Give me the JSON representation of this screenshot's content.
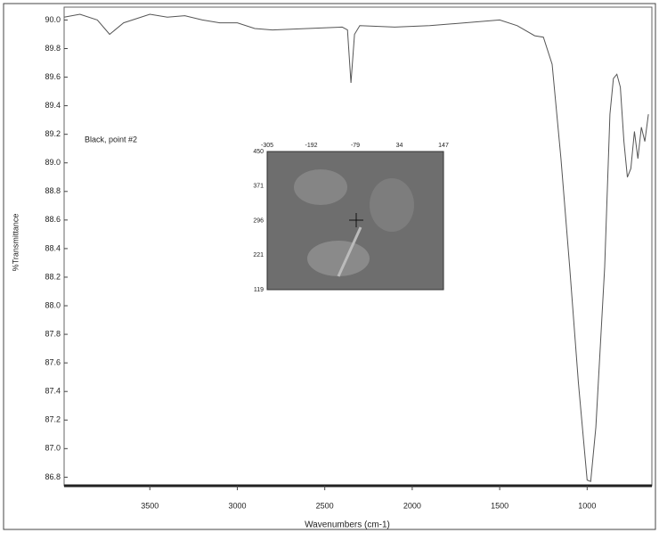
{
  "chart_data": {
    "type": "line",
    "annotation": "Black, point #2",
    "xlabel": "Wavenumbers (cm-1)",
    "ylabel": "%Transmittance",
    "x": [
      3990,
      3900,
      3800,
      3730,
      3650,
      3500,
      3400,
      3300,
      3200,
      3100,
      3000,
      2900,
      2800,
      2600,
      2400,
      2370,
      2350,
      2330,
      2300,
      2100,
      1900,
      1700,
      1500,
      1400,
      1300,
      1250,
      1200,
      1150,
      1100,
      1050,
      1000,
      980,
      950,
      900,
      870,
      850,
      830,
      810,
      790,
      770,
      750,
      730,
      710,
      690,
      670,
      650
    ],
    "series": [
      {
        "color": "#555555",
        "values": [
          90.02,
          90.04,
          90.0,
          89.9,
          89.98,
          90.04,
          90.02,
          90.03,
          90.0,
          89.98,
          89.98,
          89.94,
          89.93,
          89.94,
          89.95,
          89.93,
          89.56,
          89.9,
          89.96,
          89.95,
          89.96,
          89.98,
          90.0,
          89.96,
          89.89,
          89.88,
          89.69,
          89.03,
          88.27,
          87.46,
          86.78,
          86.77,
          87.15,
          88.27,
          89.34,
          89.59,
          89.62,
          89.53,
          89.15,
          88.9,
          88.96,
          89.22,
          89.03,
          89.25,
          89.15,
          89.34
        ]
      }
    ],
    "xlim": [
      3990,
      630
    ],
    "xticks": [
      3500,
      3000,
      2500,
      2000,
      1500,
      1000
    ],
    "ylim": [
      86.74,
      90.09
    ],
    "yticks": [
      {
        "value": 86.8,
        "label": "86.8"
      },
      {
        "value": 87.0,
        "label": "87.0"
      },
      {
        "value": 87.2,
        "label": "87.2"
      },
      {
        "value": 87.4,
        "label": "87.4"
      },
      {
        "value": 87.6,
        "label": "87.6"
      },
      {
        "value": 87.8,
        "label": "87.8"
      },
      {
        "value": 88.0,
        "label": "88.0"
      },
      {
        "value": 88.2,
        "label": "88.2"
      },
      {
        "value": 88.4,
        "label": "88.4"
      },
      {
        "value": 88.6,
        "label": "88.6"
      },
      {
        "value": 88.8,
        "label": "88.8"
      },
      {
        "value": 89.0,
        "label": "89.0"
      },
      {
        "value": 89.2,
        "label": "89.2"
      },
      {
        "value": 89.4,
        "label": "89.4"
      },
      {
        "value": 89.6,
        "label": "89.6"
      },
      {
        "value": 89.8,
        "label": "89.8"
      },
      {
        "value": 90.0,
        "label": "90.0"
      }
    ],
    "inset": {
      "xticks": [
        -305,
        -192,
        -79,
        34,
        147
      ],
      "yticks": [
        450,
        371,
        296,
        221,
        119
      ]
    }
  }
}
